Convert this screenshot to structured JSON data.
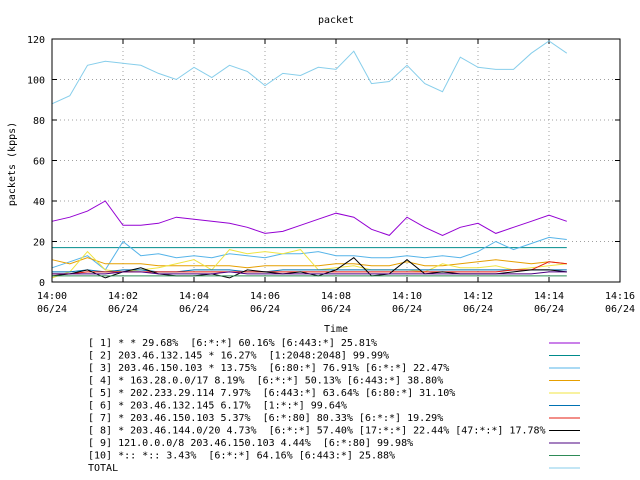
{
  "chart_data": {
    "type": "line",
    "title": "packet",
    "xlabel": "Time",
    "ylabel": "packets (kpps)",
    "ylim": [
      0,
      120
    ],
    "xlim": [
      "14:00",
      "14:16"
    ],
    "grid": true,
    "y_ticks": [
      "0",
      "20",
      "40",
      "60",
      "80",
      "100",
      "120"
    ],
    "x_ticks": [
      {
        "time": "14:00",
        "date": "06/24"
      },
      {
        "time": "14:02",
        "date": "06/24"
      },
      {
        "time": "14:04",
        "date": "06/24"
      },
      {
        "time": "14:06",
        "date": "06/24"
      },
      {
        "time": "14:08",
        "date": "06/24"
      },
      {
        "time": "14:10",
        "date": "06/24"
      },
      {
        "time": "14:12",
        "date": "06/24"
      },
      {
        "time": "14:14",
        "date": "06/24"
      },
      {
        "time": "14:16",
        "date": "06/24"
      }
    ],
    "x": [
      "14:00",
      "14:00:30",
      "14:01",
      "14:01:30",
      "14:02",
      "14:02:30",
      "14:03",
      "14:03:30",
      "14:04",
      "14:04:30",
      "14:05",
      "14:05:30",
      "14:06",
      "14:06:30",
      "14:07",
      "14:07:30",
      "14:08",
      "14:08:30",
      "14:09",
      "14:09:30",
      "14:10",
      "14:10:30",
      "14:11",
      "14:11:30",
      "14:12",
      "14:12:30",
      "14:13",
      "14:13:30",
      "14:14",
      "14:14:30"
    ],
    "legend_position": "bottom",
    "series": [
      {
        "name": "[ 1] * * 29.68%  [6:*:*] 60.16% [6:443:*] 25.81%",
        "color": "#9400d3",
        "values": [
          30,
          32,
          35,
          40,
          28,
          28,
          29,
          32,
          31,
          30,
          29,
          27,
          24,
          25,
          28,
          31,
          34,
          32,
          26,
          23,
          32,
          27,
          23,
          27,
          29,
          24,
          27,
          30,
          33,
          30
        ]
      },
      {
        "name": "[ 2] 203.46.132.145 * 16.27%  [1:2048:2048] 99.99%",
        "color": "#008b8b",
        "values": [
          17,
          17,
          17,
          17,
          17,
          17,
          17,
          17,
          17,
          17,
          17,
          17,
          17,
          17,
          17,
          17,
          17,
          17,
          17,
          17,
          17,
          17,
          17,
          17,
          17,
          17,
          17,
          17,
          17,
          17
        ]
      },
      {
        "name": "[ 3] 203.46.150.103 * 13.75%  [6:80:*] 76.91% [6:*:*] 22.47%",
        "color": "#56b4e9",
        "values": [
          7,
          10,
          13,
          6,
          20,
          13,
          14,
          12,
          13,
          12,
          14,
          13,
          12,
          14,
          14,
          15,
          13,
          13,
          12,
          12,
          13,
          12,
          13,
          12,
          15,
          20,
          16,
          19,
          22,
          21
        ]
      },
      {
        "name": "[ 4] * 163.28.0.0/17 8.19%  [6:*:*] 50.13% [6:443:*] 38.80%",
        "color": "#e69f00",
        "values": [
          11,
          9,
          12,
          9,
          9,
          9,
          8,
          8,
          8,
          8,
          8,
          7,
          8,
          8,
          8,
          8,
          9,
          9,
          8,
          8,
          10,
          8,
          8,
          9,
          10,
          11,
          10,
          9,
          10,
          9
        ]
      },
      {
        "name": "[ 5] * 202.233.29.114 7.97%  [6:443:*] 63.64% [6:80:*] 31.10%",
        "color": "#f0e442",
        "values": [
          2,
          5,
          15,
          6,
          5,
          6,
          7,
          9,
          11,
          6,
          16,
          14,
          15,
          14,
          16,
          6,
          7,
          8,
          6,
          6,
          6,
          5,
          9,
          7,
          7,
          8,
          6,
          7,
          8,
          9
        ]
      },
      {
        "name": "[ 6] * 203.46.132.145 6.17%  [1:*:*] 99.64%",
        "color": "#0072b2",
        "values": [
          5,
          5,
          6,
          5,
          6,
          6,
          5,
          5,
          6,
          6,
          6,
          5,
          5,
          6,
          6,
          6,
          6,
          6,
          6,
          6,
          6,
          6,
          6,
          6,
          6,
          6,
          6,
          6,
          6,
          6
        ]
      },
      {
        "name": "[ 7] * 203.46.150.103 5.37%  [6:*:80] 80.33% [6:*:*] 19.29%",
        "color": "#e51e10",
        "values": [
          4,
          4,
          5,
          5,
          5,
          5,
          5,
          5,
          5,
          5,
          5,
          5,
          5,
          5,
          5,
          5,
          5,
          5,
          5,
          5,
          5,
          5,
          5,
          5,
          5,
          5,
          6,
          6,
          10,
          9
        ]
      },
      {
        "name": "[ 8] * 203.46.144.0/20 4.73%  [6:*:*] 57.40% [17:*:*] 22.44% [47:*:*] 17.78%",
        "color": "#000000",
        "values": [
          3,
          4,
          6,
          2,
          5,
          7,
          4,
          3,
          3,
          4,
          2,
          6,
          5,
          4,
          5,
          3,
          6,
          12,
          3,
          4,
          11,
          4,
          5,
          4,
          4,
          4,
          5,
          6,
          6,
          5
        ]
      },
      {
        "name": "[ 9] 121.0.0.0/8 203.46.150.103 4.44%  [6:*:80] 99.98%",
        "color": "#4b0082",
        "values": [
          4,
          4,
          4,
          4,
          5,
          5,
          4,
          4,
          4,
          4,
          5,
          4,
          4,
          4,
          4,
          4,
          4,
          4,
          4,
          4,
          4,
          4,
          4,
          4,
          4,
          4,
          4,
          4,
          5,
          5
        ]
      },
      {
        "name": "[10] *:: *:: 3.43%  [6:*:*] 64.16% [6:443:*] 25.88%",
        "color": "#2e8b57",
        "values": [
          3,
          3,
          3,
          3,
          3,
          3,
          3,
          3,
          3,
          3,
          3,
          3,
          3,
          3,
          3,
          3,
          3,
          3,
          3,
          3,
          3,
          3,
          3,
          3,
          3,
          3,
          3,
          3,
          3,
          3
        ]
      },
      {
        "name": "TOTAL",
        "color": "#87ceeb",
        "values": [
          88,
          92,
          107,
          109,
          108,
          107,
          103,
          100,
          106,
          101,
          107,
          104,
          97,
          103,
          102,
          106,
          105,
          114,
          98,
          99,
          107,
          98,
          94,
          111,
          106,
          105,
          105,
          113,
          119,
          113
        ]
      }
    ]
  }
}
